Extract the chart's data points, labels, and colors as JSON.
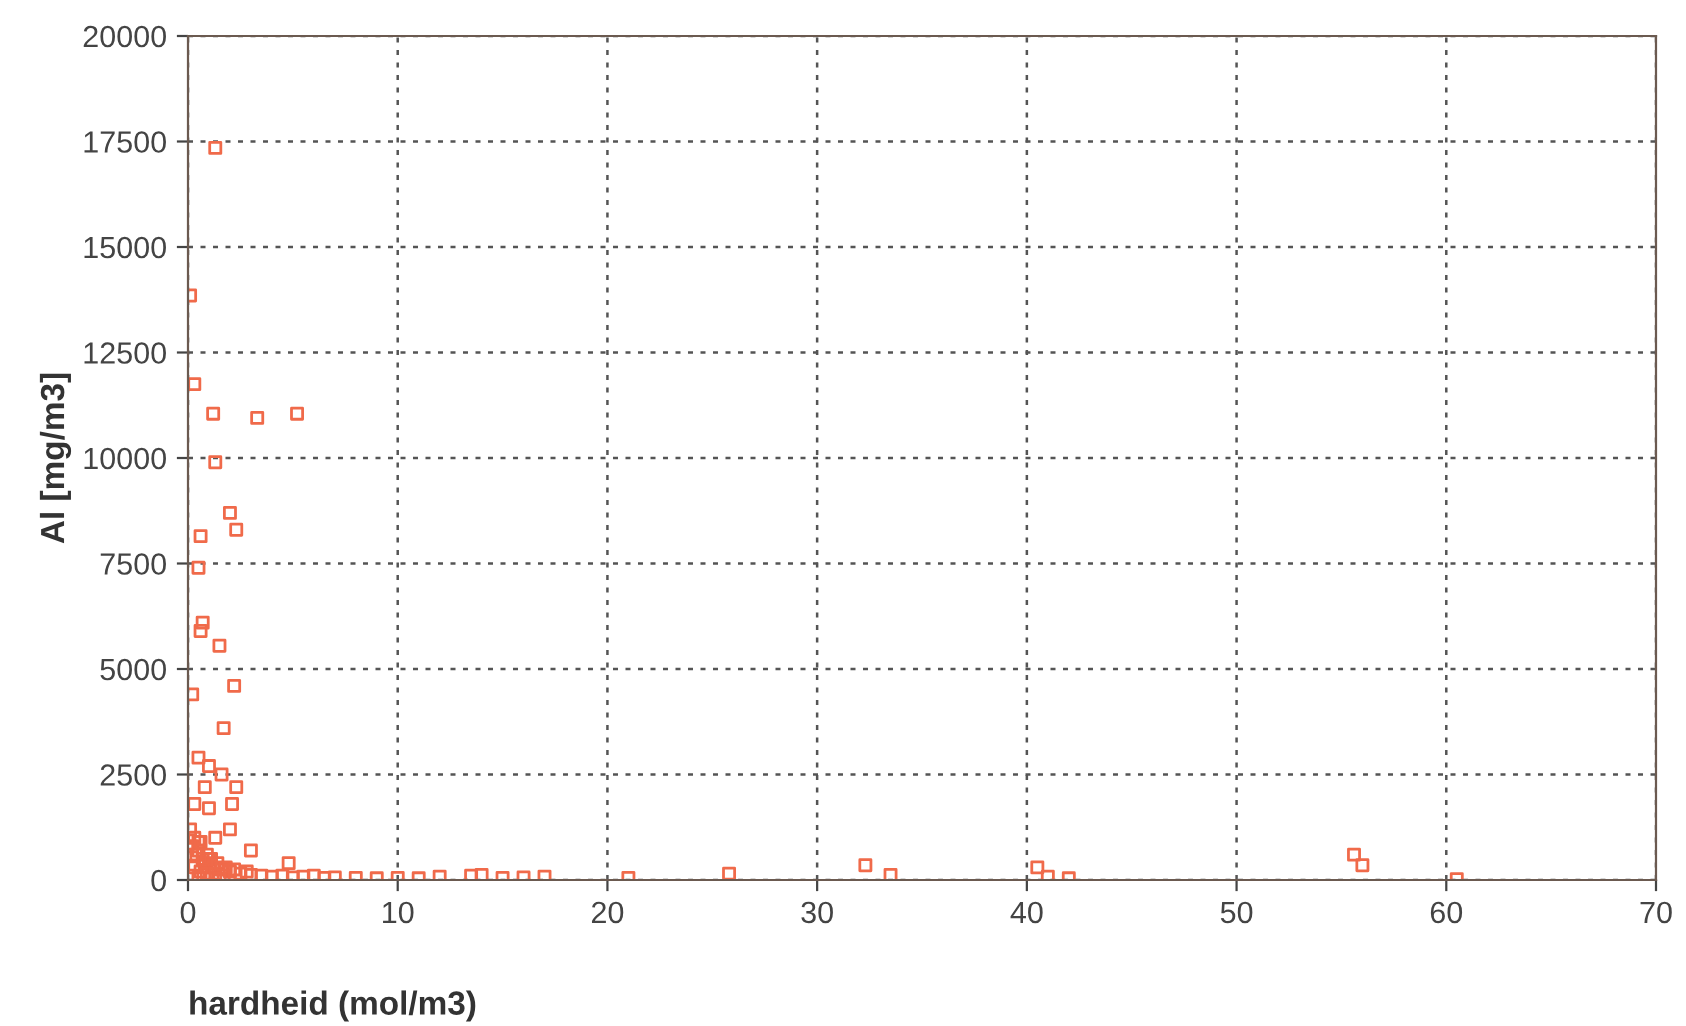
{
  "chart_data": {
    "type": "scatter",
    "xlabel": "hardheid (mol/m3)",
    "ylabel": "Al [mg/m3]",
    "xlim": [
      0,
      70
    ],
    "ylim": [
      0,
      20000
    ],
    "xticks": [
      0,
      10,
      20,
      30,
      40,
      50,
      60,
      70
    ],
    "yticks": [
      0,
      2500,
      5000,
      7500,
      10000,
      12500,
      15000,
      17500,
      20000
    ],
    "grid": true,
    "marker": "square",
    "legend": false,
    "series": [
      {
        "color": "#f06a4a",
        "x": [
          1.3,
          0.1,
          0.3,
          1.2,
          3.3,
          5.2,
          1.3,
          2.0,
          2.3,
          0.6,
          0.5,
          0.7,
          0.6,
          1.5,
          0.2,
          2.2,
          1.7,
          0.5,
          1.0,
          1.6,
          2.3,
          0.8,
          2.1,
          0.3,
          1.0,
          2.0,
          1.3,
          0.5,
          3.0,
          0.2,
          4.8,
          1.0,
          0.1,
          0.2,
          0.3,
          0.4,
          0.5,
          0.6,
          0.7,
          0.8,
          0.9,
          1.0,
          1.1,
          1.2,
          1.4,
          1.6,
          1.8,
          2.0,
          2.2,
          2.5,
          2.8,
          3.0,
          3.5,
          4.0,
          4.5,
          5.0,
          5.5,
          6.0,
          6.5,
          7.0,
          8.0,
          9.0,
          10.0,
          11.0,
          12.0,
          13.5,
          14.0,
          15.0,
          16.0,
          17.0,
          21.0,
          25.8,
          32.3,
          33.5,
          40.5,
          41.0,
          42.0,
          55.6,
          56.0,
          60.5,
          0.3,
          0.6,
          0.9,
          1.3,
          1.7,
          0.2,
          0.5,
          1.5
        ],
        "values": [
          17350,
          13850,
          11750,
          11050,
          10950,
          11050,
          9900,
          8700,
          8300,
          8150,
          7400,
          6100,
          5900,
          5550,
          4400,
          4600,
          3600,
          2900,
          2700,
          2500,
          2200,
          2200,
          1800,
          1800,
          1700,
          1200,
          1000,
          900,
          700,
          600,
          400,
          500,
          1200,
          800,
          1000,
          600,
          700,
          900,
          500,
          400,
          600,
          300,
          500,
          300,
          400,
          250,
          300,
          200,
          250,
          150,
          200,
          120,
          100,
          80,
          100,
          60,
          80,
          100,
          50,
          60,
          50,
          40,
          50,
          40,
          80,
          100,
          120,
          50,
          60,
          80,
          50,
          150,
          350,
          120,
          300,
          80,
          40,
          600,
          350,
          20,
          300,
          200,
          150,
          150,
          100,
          100,
          50,
          30
        ]
      }
    ]
  }
}
